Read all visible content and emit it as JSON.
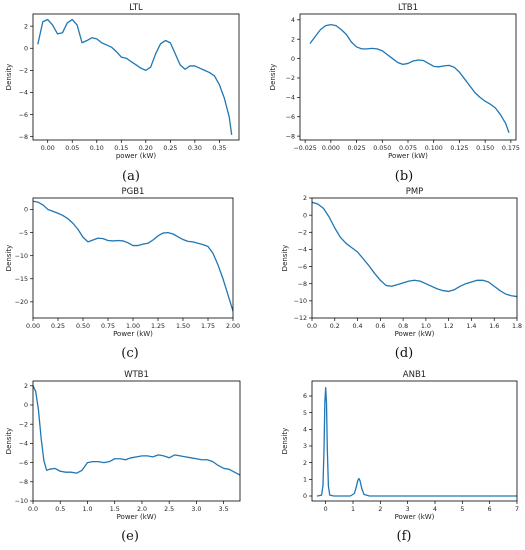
{
  "figure": {
    "colors": {
      "line": "#1f77b4",
      "axes": "#000000",
      "text": "#222222"
    }
  },
  "chart_data": [
    {
      "type": "line",
      "caption": "(a)",
      "title": "LTL",
      "xlabel": "power (kW)",
      "ylabel": "Density",
      "xlim": [
        -0.03,
        0.39
      ],
      "ylim": [
        -8.3,
        3.1
      ],
      "xticks": [
        0.0,
        0.05,
        0.1,
        0.15,
        0.2,
        0.25,
        0.3,
        0.35
      ],
      "xtick_labels": [
        "0.00",
        "0.05",
        "0.10",
        "0.15",
        "0.20",
        "0.25",
        "0.30",
        "0.35"
      ],
      "yticks": [
        -8,
        -6,
        -4,
        -2,
        0,
        2
      ],
      "ytick_labels": [
        "−8",
        "−6",
        "−4",
        "−2",
        "0",
        "2"
      ],
      "series": [
        {
          "x": [
            -0.02,
            -0.01,
            0.0,
            0.01,
            0.02,
            0.03,
            0.04,
            0.05,
            0.06,
            0.07,
            0.08,
            0.09,
            0.1,
            0.11,
            0.12,
            0.13,
            0.14,
            0.15,
            0.16,
            0.17,
            0.18,
            0.19,
            0.2,
            0.21,
            0.22,
            0.23,
            0.24,
            0.25,
            0.26,
            0.27,
            0.28,
            0.29,
            0.3,
            0.31,
            0.32,
            0.33,
            0.34,
            0.35,
            0.36,
            0.37,
            0.375
          ],
          "y": [
            0.4,
            2.4,
            2.6,
            2.1,
            1.3,
            1.4,
            2.3,
            2.6,
            2.1,
            0.5,
            0.7,
            0.95,
            0.85,
            0.5,
            0.3,
            0.1,
            -0.3,
            -0.8,
            -0.9,
            -1.2,
            -1.5,
            -1.8,
            -2.0,
            -1.7,
            -0.5,
            0.4,
            0.7,
            0.5,
            -0.5,
            -1.5,
            -1.9,
            -1.6,
            -1.6,
            -1.8,
            -2.0,
            -2.2,
            -2.5,
            -3.3,
            -4.5,
            -6.2,
            -7.8
          ]
        }
      ]
    },
    {
      "type": "line",
      "caption": "(b)",
      "title": "LTB1",
      "xlabel": "Power (kW)",
      "ylabel": "Density",
      "xlim": [
        -0.03,
        0.18
      ],
      "ylim": [
        -8.4,
        4.6
      ],
      "xticks": [
        -0.025,
        0.0,
        0.025,
        0.05,
        0.075,
        0.1,
        0.125,
        0.15,
        0.175
      ],
      "xtick_labels": [
        "−0.025",
        "0.000",
        "0.025",
        "0.050",
        "0.075",
        "0.100",
        "0.125",
        "0.150",
        "0.175"
      ],
      "yticks": [
        -8,
        -6,
        -4,
        -2,
        0,
        2,
        4
      ],
      "ytick_labels": [
        "−8",
        "−6",
        "−4",
        "−2",
        "0",
        "2",
        "4"
      ],
      "series": [
        {
          "x": [
            -0.02,
            -0.015,
            -0.01,
            -0.005,
            0.0,
            0.005,
            0.01,
            0.015,
            0.02,
            0.025,
            0.03,
            0.035,
            0.04,
            0.045,
            0.05,
            0.055,
            0.06,
            0.065,
            0.07,
            0.075,
            0.08,
            0.085,
            0.09,
            0.095,
            0.1,
            0.105,
            0.11,
            0.115,
            0.12,
            0.125,
            0.13,
            0.135,
            0.14,
            0.145,
            0.15,
            0.155,
            0.16,
            0.165,
            0.17,
            0.173
          ],
          "y": [
            1.6,
            2.3,
            3.0,
            3.4,
            3.5,
            3.4,
            3.0,
            2.5,
            1.7,
            1.2,
            1.0,
            1.0,
            1.05,
            1.0,
            0.8,
            0.4,
            0.0,
            -0.4,
            -0.6,
            -0.5,
            -0.25,
            -0.15,
            -0.2,
            -0.5,
            -0.8,
            -0.85,
            -0.75,
            -0.7,
            -0.9,
            -1.4,
            -2.1,
            -2.8,
            -3.5,
            -4.0,
            -4.4,
            -4.7,
            -5.1,
            -5.8,
            -6.7,
            -7.6
          ]
        }
      ]
    },
    {
      "type": "line",
      "caption": "(c)",
      "title": "PGB1",
      "xlabel": "Power (kW)",
      "ylabel": "Density",
      "xlim": [
        0.0,
        2.0
      ],
      "ylim": [
        -23.5,
        2.5
      ],
      "xticks": [
        0.0,
        0.25,
        0.5,
        0.75,
        1.0,
        1.25,
        1.5,
        1.75,
        2.0
      ],
      "xtick_labels": [
        "0.00",
        "0.25",
        "0.50",
        "0.75",
        "1.00",
        "1.25",
        "1.50",
        "1.75",
        "2.00"
      ],
      "yticks": [
        -20,
        -15,
        -10,
        -5,
        0
      ],
      "ytick_labels": [
        "−20",
        "−15",
        "−10",
        "−5",
        "0"
      ],
      "series": [
        {
          "x": [
            0.0,
            0.05,
            0.1,
            0.15,
            0.2,
            0.25,
            0.3,
            0.35,
            0.4,
            0.45,
            0.5,
            0.55,
            0.6,
            0.65,
            0.7,
            0.75,
            0.8,
            0.85,
            0.9,
            0.95,
            1.0,
            1.05,
            1.1,
            1.15,
            1.2,
            1.25,
            1.3,
            1.35,
            1.4,
            1.45,
            1.5,
            1.55,
            1.6,
            1.65,
            1.7,
            1.75,
            1.8,
            1.85,
            1.9,
            1.95,
            2.0
          ],
          "y": [
            1.8,
            1.6,
            1.0,
            0.0,
            -0.4,
            -0.8,
            -1.3,
            -2.0,
            -3.0,
            -4.3,
            -6.0,
            -7.0,
            -6.6,
            -6.2,
            -6.3,
            -6.7,
            -6.8,
            -6.7,
            -6.8,
            -7.2,
            -7.8,
            -7.8,
            -7.5,
            -7.3,
            -6.6,
            -5.7,
            -5.1,
            -5.0,
            -5.3,
            -5.9,
            -6.5,
            -6.9,
            -7.0,
            -7.3,
            -7.6,
            -8.0,
            -9.5,
            -12.0,
            -15.0,
            -18.5,
            -22.0
          ]
        }
      ]
    },
    {
      "type": "line",
      "caption": "(d)",
      "title": "PMP",
      "xlabel": "Power (kW)",
      "ylabel": "Density",
      "xlim": [
        0.0,
        1.8
      ],
      "ylim": [
        -12.0,
        2.0
      ],
      "xticks": [
        0.0,
        0.2,
        0.4,
        0.6,
        0.8,
        1.0,
        1.2,
        1.4,
        1.6,
        1.8
      ],
      "xtick_labels": [
        "0.0",
        "0.2",
        "0.4",
        "0.6",
        "0.8",
        "1.0",
        "1.2",
        "1.4",
        "1.6",
        "1.8"
      ],
      "yticks": [
        -12,
        -10,
        -8,
        -6,
        -4,
        -2,
        0,
        2
      ],
      "ytick_labels": [
        "−12",
        "−10",
        "−8",
        "−6",
        "−4",
        "−2",
        "0",
        "2"
      ],
      "series": [
        {
          "x": [
            0.0,
            0.05,
            0.1,
            0.15,
            0.2,
            0.25,
            0.3,
            0.35,
            0.4,
            0.45,
            0.5,
            0.55,
            0.6,
            0.65,
            0.7,
            0.75,
            0.8,
            0.85,
            0.9,
            0.95,
            1.0,
            1.05,
            1.1,
            1.15,
            1.2,
            1.25,
            1.3,
            1.35,
            1.4,
            1.45,
            1.5,
            1.55,
            1.6,
            1.65,
            1.7,
            1.75,
            1.8
          ],
          "y": [
            1.5,
            1.3,
            0.8,
            -0.2,
            -1.5,
            -2.6,
            -3.3,
            -3.8,
            -4.3,
            -5.1,
            -5.9,
            -6.8,
            -7.6,
            -8.2,
            -8.3,
            -8.1,
            -7.9,
            -7.7,
            -7.6,
            -7.7,
            -8.0,
            -8.3,
            -8.6,
            -8.8,
            -8.9,
            -8.7,
            -8.3,
            -8.0,
            -7.8,
            -7.6,
            -7.6,
            -7.8,
            -8.3,
            -8.8,
            -9.2,
            -9.4,
            -9.5
          ]
        }
      ]
    },
    {
      "type": "line",
      "caption": "(e)",
      "title": "WTB1",
      "xlabel": "Power (kW)",
      "ylabel": "Density",
      "xlim": [
        0.0,
        3.8
      ],
      "ylim": [
        -10.0,
        2.5
      ],
      "xticks": [
        0.0,
        0.5,
        1.0,
        1.5,
        2.0,
        2.5,
        3.0,
        3.5
      ],
      "xtick_labels": [
        "0.0",
        "0.5",
        "1.0",
        "1.5",
        "2.0",
        "2.5",
        "3.0",
        "3.5"
      ],
      "yticks": [
        -10,
        -8,
        -6,
        -4,
        -2,
        0,
        2
      ],
      "ytick_labels": [
        "−10",
        "−8",
        "−6",
        "−4",
        "−2",
        "0",
        "2"
      ],
      "series": [
        {
          "x": [
            0.0,
            0.05,
            0.1,
            0.15,
            0.2,
            0.25,
            0.3,
            0.4,
            0.5,
            0.6,
            0.7,
            0.8,
            0.9,
            1.0,
            1.1,
            1.2,
            1.3,
            1.4,
            1.5,
            1.6,
            1.7,
            1.8,
            1.9,
            2.0,
            2.1,
            2.2,
            2.3,
            2.4,
            2.5,
            2.6,
            2.7,
            2.8,
            2.9,
            3.0,
            3.1,
            3.2,
            3.3,
            3.4,
            3.5,
            3.6,
            3.7,
            3.8
          ],
          "y": [
            2.0,
            1.4,
            -0.5,
            -3.5,
            -5.8,
            -6.8,
            -6.7,
            -6.6,
            -6.9,
            -7.0,
            -7.0,
            -7.1,
            -6.8,
            -6.0,
            -5.9,
            -5.9,
            -6.0,
            -5.9,
            -5.6,
            -5.6,
            -5.7,
            -5.5,
            -5.4,
            -5.3,
            -5.3,
            -5.4,
            -5.2,
            -5.3,
            -5.5,
            -5.2,
            -5.3,
            -5.4,
            -5.5,
            -5.6,
            -5.7,
            -5.7,
            -5.9,
            -6.3,
            -6.6,
            -6.7,
            -7.0,
            -7.3
          ]
        }
      ]
    },
    {
      "type": "line",
      "caption": "(f)",
      "title": "ANB1",
      "xlabel": "Power (kW)",
      "ylabel": "Density",
      "xlim": [
        -0.5,
        7.0
      ],
      "ylim": [
        -0.3,
        6.9
      ],
      "xticks": [
        0,
        1,
        2,
        3,
        4,
        5,
        6,
        7
      ],
      "xtick_labels": [
        "0",
        "1",
        "2",
        "3",
        "4",
        "5",
        "6",
        "7"
      ],
      "yticks": [
        0,
        1,
        2,
        3,
        4,
        5,
        6
      ],
      "ytick_labels": [
        "0",
        "1",
        "2",
        "3",
        "4",
        "5",
        "6"
      ],
      "series": [
        {
          "x": [
            -0.3,
            -0.15,
            -0.1,
            -0.06,
            -0.03,
            0.0,
            0.03,
            0.06,
            0.1,
            0.15,
            0.3,
            0.6,
            0.9,
            1.05,
            1.12,
            1.18,
            1.22,
            1.26,
            1.32,
            1.4,
            1.6,
            2.5,
            4.0,
            5.5,
            7.0
          ],
          "y": [
            0.0,
            0.05,
            0.6,
            2.8,
            5.6,
            6.5,
            5.6,
            2.8,
            0.6,
            0.05,
            0.0,
            0.0,
            0.0,
            0.15,
            0.55,
            0.95,
            1.05,
            0.9,
            0.45,
            0.1,
            0.0,
            0.0,
            0.0,
            0.0,
            0.0
          ]
        }
      ]
    }
  ]
}
